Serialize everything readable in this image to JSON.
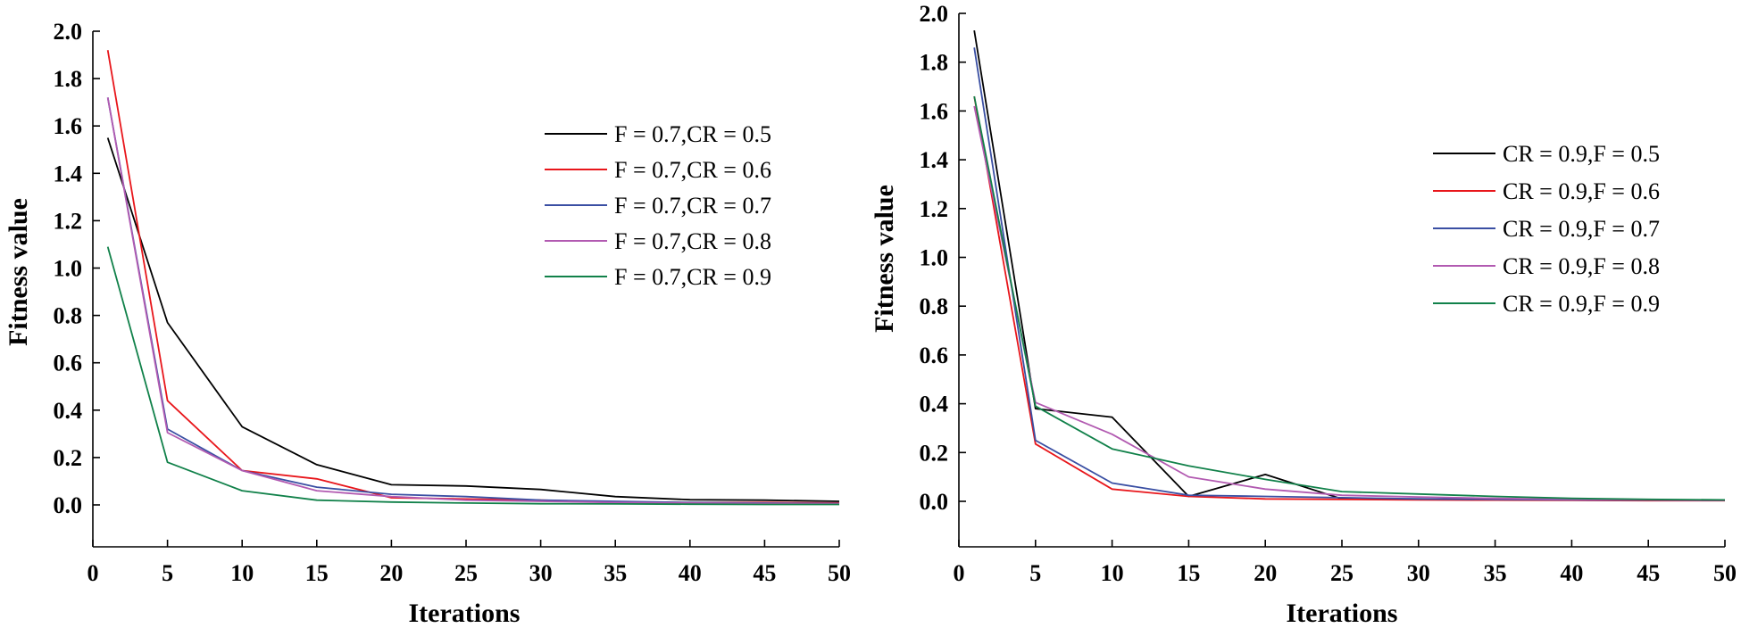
{
  "chart_data": [
    {
      "type": "line",
      "title": "",
      "xlabel": "Iterations",
      "ylabel": "Fitness value",
      "xlim": [
        0,
        50
      ],
      "ylim": [
        -0.18,
        2.0
      ],
      "xticks": [
        0,
        5,
        10,
        15,
        20,
        25,
        30,
        35,
        40,
        45,
        50
      ],
      "xtick_labels": [
        "0",
        "5",
        "10",
        "15",
        "20",
        "25",
        "30",
        "35",
        "40",
        "45",
        "50"
      ],
      "yticks": [
        0.0,
        0.2,
        0.4,
        0.6,
        0.8,
        1.0,
        1.2,
        1.4,
        1.6,
        1.8,
        2.0
      ],
      "ytick_labels": [
        "0.0",
        "0.2",
        "0.4",
        "0.6",
        "0.8",
        "1.0",
        "1.2",
        "1.4",
        "1.6",
        "1.8",
        "2.0"
      ],
      "legend_position": "upper-right",
      "x": [
        1,
        5,
        10,
        15,
        20,
        25,
        30,
        35,
        40,
        45,
        50
      ],
      "series": [
        {
          "name": "F = 0.7,CR = 0.5",
          "color": "#000000",
          "values": [
            1.55,
            0.77,
            0.33,
            0.17,
            0.085,
            0.08,
            0.065,
            0.035,
            0.022,
            0.02,
            0.015
          ]
        },
        {
          "name": "F = 0.7,CR = 0.6",
          "color": "#e8161b",
          "values": [
            1.92,
            0.44,
            0.145,
            0.11,
            0.03,
            0.025,
            0.02,
            0.012,
            0.01,
            0.01,
            0.008
          ]
        },
        {
          "name": "F = 0.7,CR = 0.7",
          "color": "#3a4fa3",
          "values": [
            1.72,
            0.32,
            0.145,
            0.075,
            0.045,
            0.035,
            0.02,
            0.015,
            0.01,
            0.008,
            0.006
          ]
        },
        {
          "name": "F = 0.7,CR = 0.8",
          "color": "#b25ab1",
          "values": [
            1.72,
            0.305,
            0.145,
            0.06,
            0.035,
            0.02,
            0.015,
            0.01,
            0.008,
            0.006,
            0.005
          ]
        },
        {
          "name": "F = 0.7,CR = 0.9",
          "color": "#11814a",
          "values": [
            1.09,
            0.18,
            0.06,
            0.02,
            0.012,
            0.008,
            0.005,
            0.004,
            0.003,
            0.002,
            0.002
          ]
        }
      ]
    },
    {
      "type": "line",
      "title": "",
      "xlabel": "Iterations",
      "ylabel": "Fitness value",
      "xlim": [
        0,
        50
      ],
      "ylim": [
        -0.18,
        2.0
      ],
      "xticks": [
        0,
        5,
        10,
        15,
        20,
        25,
        30,
        35,
        40,
        45,
        50
      ],
      "xtick_labels": [
        "0",
        "5",
        "10",
        "15",
        "20",
        "25",
        "30",
        "35",
        "40",
        "45",
        "50"
      ],
      "yticks": [
        0.0,
        0.2,
        0.4,
        0.6,
        0.8,
        1.0,
        1.2,
        1.4,
        1.6,
        1.8,
        2.0
      ],
      "ytick_labels": [
        "0.0",
        "0.2",
        "0.4",
        "0.6",
        "0.8",
        "1.0",
        "1.2",
        "1.4",
        "1.6",
        "1.8",
        "2.0"
      ],
      "legend_position": "upper-right",
      "x": [
        1,
        5,
        10,
        15,
        20,
        25,
        30,
        35,
        40,
        45,
        50
      ],
      "series": [
        {
          "name": "CR = 0.9,F = 0.5",
          "color": "#000000",
          "values": [
            1.93,
            0.38,
            0.345,
            0.02,
            0.11,
            0.01,
            0.01,
            0.008,
            0.006,
            0.005,
            0.004
          ]
        },
        {
          "name": "CR = 0.9,F = 0.6",
          "color": "#e8161b",
          "values": [
            1.66,
            0.235,
            0.05,
            0.02,
            0.01,
            0.008,
            0.006,
            0.005,
            0.004,
            0.003,
            0.003
          ]
        },
        {
          "name": "CR = 0.9,F = 0.7",
          "color": "#3a4fa3",
          "values": [
            1.86,
            0.25,
            0.075,
            0.025,
            0.02,
            0.015,
            0.01,
            0.008,
            0.006,
            0.005,
            0.004
          ]
        },
        {
          "name": "CR = 0.9,F = 0.8",
          "color": "#b25ab1",
          "values": [
            1.62,
            0.405,
            0.275,
            0.1,
            0.05,
            0.025,
            0.018,
            0.012,
            0.008,
            0.006,
            0.005
          ]
        },
        {
          "name": "CR = 0.9,F = 0.9",
          "color": "#11814a",
          "values": [
            1.66,
            0.39,
            0.215,
            0.145,
            0.09,
            0.04,
            0.03,
            0.02,
            0.012,
            0.008,
            0.006
          ]
        }
      ]
    }
  ]
}
